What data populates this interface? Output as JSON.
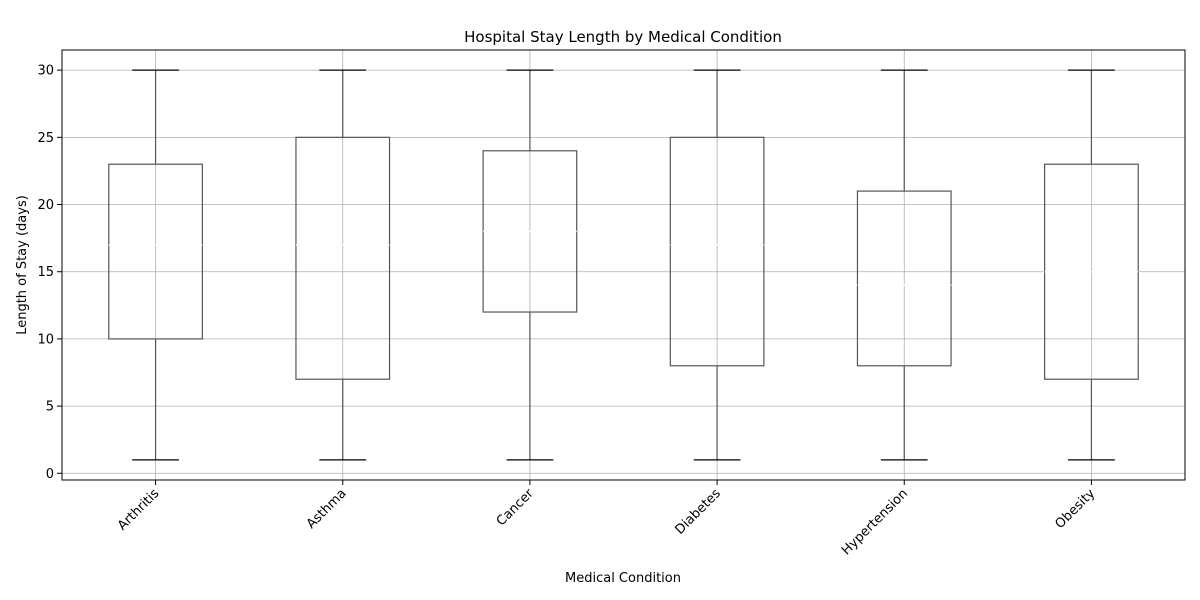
{
  "chart_data": {
    "type": "box",
    "title": "Hospital Stay Length by Medical Condition",
    "xlabel": "Medical Condition",
    "ylabel": "Length of Stay (days)",
    "ylim": [
      -0.5,
      31.5
    ],
    "yticks": [
      0,
      5,
      10,
      15,
      20,
      25,
      30
    ],
    "grid": true,
    "categories": [
      "Arthritis",
      "Asthma",
      "Cancer",
      "Diabetes",
      "Hypertension",
      "Obesity"
    ],
    "boxes": [
      {
        "min": 1,
        "q1": 10,
        "median": 17,
        "q3": 23,
        "max": 30
      },
      {
        "min": 1,
        "q1": 7,
        "median": 17,
        "q3": 25,
        "max": 30
      },
      {
        "min": 1,
        "q1": 12,
        "median": 18,
        "q3": 24,
        "max": 30
      },
      {
        "min": 1,
        "q1": 8,
        "median": 17,
        "q3": 25,
        "max": 30
      },
      {
        "min": 1,
        "q1": 8,
        "median": 14,
        "q3": 21,
        "max": 30
      },
      {
        "min": 1,
        "q1": 7,
        "median": 15,
        "q3": 23,
        "max": 30
      }
    ],
    "colors": {
      "box": "#555555",
      "whisker": "#555555",
      "cap": "#000000",
      "median": "#ffffff",
      "grid": "#b0b0b0"
    }
  }
}
